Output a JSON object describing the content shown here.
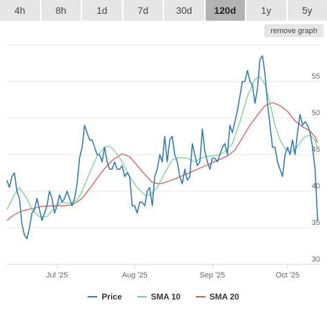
{
  "tabs": [
    {
      "label": "4h",
      "active": false
    },
    {
      "label": "8h",
      "active": false
    },
    {
      "label": "1d",
      "active": false
    },
    {
      "label": "7d",
      "active": false
    },
    {
      "label": "30d",
      "active": false
    },
    {
      "label": "120d",
      "active": true
    },
    {
      "label": "1y",
      "active": false
    },
    {
      "label": "5y",
      "active": false
    }
  ],
  "remove_graph_label": "remove graph",
  "chart_data": {
    "type": "line",
    "title": "",
    "xlabel": "",
    "ylabel": "",
    "ylim": [
      30,
      60
    ],
    "yticks": [
      30,
      35,
      40,
      45,
      50,
      55
    ],
    "xticks": [
      {
        "label": "Jul '25",
        "x": 20
      },
      {
        "label": "Aug '25",
        "x": 51
      },
      {
        "label": "Sep '25",
        "x": 82
      },
      {
        "label": "Oct '25",
        "x": 112
      }
    ],
    "xlim": [
      0,
      125
    ],
    "grid": true,
    "legend_position": "bottom",
    "series": [
      {
        "name": "Price",
        "color": "#2f7ab9",
        "points": [
          [
            0,
            41.5
          ],
          [
            1,
            40.5
          ],
          [
            2,
            42
          ],
          [
            3,
            42.5
          ],
          [
            4,
            40
          ],
          [
            5,
            39
          ],
          [
            6,
            35.5
          ],
          [
            7,
            34
          ],
          [
            8,
            33.5
          ],
          [
            9,
            35
          ],
          [
            10,
            37
          ],
          [
            11,
            37.5
          ],
          [
            12,
            39
          ],
          [
            13,
            37.5
          ],
          [
            14,
            36
          ],
          [
            15,
            37
          ],
          [
            16,
            38
          ],
          [
            17,
            40
          ],
          [
            18,
            39
          ],
          [
            19,
            37
          ],
          [
            20,
            38
          ],
          [
            21,
            39.5
          ],
          [
            22,
            38.5
          ],
          [
            23,
            39
          ],
          [
            24,
            40
          ],
          [
            25,
            39
          ],
          [
            26,
            38
          ],
          [
            27,
            39
          ],
          [
            28,
            41
          ],
          [
            29,
            44.5
          ],
          [
            30,
            46
          ],
          [
            31,
            49
          ],
          [
            32,
            48
          ],
          [
            33,
            47
          ],
          [
            34,
            47
          ],
          [
            35,
            46
          ],
          [
            36,
            45
          ],
          [
            37,
            45
          ],
          [
            38,
            44
          ],
          [
            39,
            46
          ],
          [
            40,
            44
          ],
          [
            41,
            43
          ],
          [
            42,
            43
          ],
          [
            43,
            44
          ],
          [
            44,
            43
          ],
          [
            45,
            43
          ],
          [
            46,
            43.5
          ],
          [
            47,
            42
          ],
          [
            48,
            42.5
          ],
          [
            49,
            42
          ],
          [
            50,
            38
          ],
          [
            51,
            38
          ],
          [
            52,
            37
          ],
          [
            53,
            38.5
          ],
          [
            54,
            38.5
          ],
          [
            55,
            38
          ],
          [
            56,
            40
          ],
          [
            57,
            40.5
          ],
          [
            58,
            38
          ],
          [
            59,
            42
          ],
          [
            60,
            43
          ],
          [
            61,
            45
          ],
          [
            62,
            44
          ],
          [
            63,
            47.5
          ],
          [
            64,
            44
          ],
          [
            65,
            47
          ],
          [
            66,
            47.5
          ],
          [
            67,
            45
          ],
          [
            68,
            44
          ],
          [
            69,
            42
          ],
          [
            70,
            41
          ],
          [
            71,
            43
          ],
          [
            72,
            41.5
          ],
          [
            73,
            42
          ],
          [
            74,
            46.5
          ],
          [
            75,
            45
          ],
          [
            76,
            43.5
          ],
          [
            77,
            44
          ],
          [
            78,
            48.5
          ],
          [
            79,
            45.5
          ],
          [
            80,
            44
          ],
          [
            81,
            43
          ],
          [
            82,
            44.5
          ],
          [
            83,
            44.5
          ],
          [
            84,
            44
          ],
          [
            85,
            45
          ],
          [
            86,
            46
          ],
          [
            87,
            46.5
          ],
          [
            88,
            45
          ],
          [
            89,
            49
          ],
          [
            90,
            48
          ],
          [
            91,
            49.5
          ],
          [
            92,
            51
          ],
          [
            93,
            53
          ],
          [
            94,
            55
          ],
          [
            95,
            55
          ],
          [
            96,
            56.5
          ],
          [
            97,
            55
          ],
          [
            98,
            54.5
          ],
          [
            99,
            52
          ],
          [
            100,
            54
          ],
          [
            101,
            58
          ],
          [
            102,
            58.5
          ],
          [
            103,
            56
          ],
          [
            104,
            52
          ],
          [
            105,
            49
          ],
          [
            106,
            46
          ],
          [
            107,
            46
          ],
          [
            108,
            44
          ],
          [
            109,
            43
          ],
          [
            110,
            42
          ],
          [
            111,
            45
          ],
          [
            112,
            46
          ],
          [
            113,
            45
          ],
          [
            114,
            47
          ],
          [
            115,
            45
          ],
          [
            116,
            48
          ],
          [
            117,
            50.5
          ],
          [
            118,
            49
          ],
          [
            119,
            49.5
          ],
          [
            120,
            49
          ],
          [
            121,
            48
          ],
          [
            122,
            46
          ],
          [
            123,
            43
          ],
          [
            124,
            36
          ]
        ]
      },
      {
        "name": "SMA 10",
        "color": "#6cd68a",
        "points": [
          [
            0,
            37.5
          ],
          [
            3,
            39.5
          ],
          [
            5,
            40.5
          ],
          [
            8,
            39
          ],
          [
            10,
            37.5
          ],
          [
            13,
            36.5
          ],
          [
            16,
            36.5
          ],
          [
            19,
            37.8
          ],
          [
            22,
            38.5
          ],
          [
            25,
            38.3
          ],
          [
            28,
            38.8
          ],
          [
            30,
            40
          ],
          [
            33,
            42.5
          ],
          [
            36,
            44.8
          ],
          [
            39,
            46
          ],
          [
            41,
            46.2
          ],
          [
            43,
            45.5
          ],
          [
            46,
            44
          ],
          [
            49,
            42
          ],
          [
            52,
            40.5
          ],
          [
            55,
            39.5
          ],
          [
            57,
            39.4
          ],
          [
            60,
            40.5
          ],
          [
            63,
            42.5
          ],
          [
            66,
            44.3
          ],
          [
            69,
            44.6
          ],
          [
            72,
            44.5
          ],
          [
            75,
            44
          ],
          [
            78,
            44.6
          ],
          [
            81,
            44.8
          ],
          [
            84,
            44.9
          ],
          [
            87,
            45.4
          ],
          [
            90,
            46.5
          ],
          [
            93,
            49.5
          ],
          [
            96,
            53
          ],
          [
            99,
            55.3
          ],
          [
            101,
            55.6
          ],
          [
            103,
            54.6
          ],
          [
            105,
            52
          ],
          [
            107,
            49
          ],
          [
            109,
            47
          ],
          [
            111,
            45.8
          ],
          [
            113,
            45.3
          ],
          [
            115,
            45.7
          ],
          [
            117,
            46.6
          ],
          [
            119,
            47.5
          ],
          [
            121,
            47.6
          ],
          [
            123,
            47
          ],
          [
            124,
            45.7
          ]
        ]
      },
      {
        "name": "SMA 20",
        "color": "#e0574f",
        "points": [
          [
            0,
            36
          ],
          [
            3,
            36.8
          ],
          [
            6,
            37.3
          ],
          [
            10,
            37.6
          ],
          [
            14,
            37.9
          ],
          [
            18,
            38
          ],
          [
            22,
            38
          ],
          [
            26,
            38.1
          ],
          [
            30,
            39
          ],
          [
            34,
            40.8
          ],
          [
            38,
            42.7
          ],
          [
            42,
            44.2
          ],
          [
            46,
            45.1
          ],
          [
            49,
            44.7
          ],
          [
            52,
            43.5
          ],
          [
            55,
            42.3
          ],
          [
            58,
            41.2
          ],
          [
            61,
            41
          ],
          [
            64,
            41.3
          ],
          [
            68,
            41.8
          ],
          [
            72,
            42.4
          ],
          [
            76,
            43
          ],
          [
            80,
            43.6
          ],
          [
            84,
            44.2
          ],
          [
            88,
            44.8
          ],
          [
            91,
            45.6
          ],
          [
            94,
            47.3
          ],
          [
            97,
            49
          ],
          [
            100,
            50.4
          ],
          [
            103,
            51.7
          ],
          [
            106,
            52.1
          ],
          [
            109,
            51.7
          ],
          [
            112,
            50.9
          ],
          [
            115,
            49.6
          ],
          [
            118,
            48.8
          ],
          [
            121,
            48.2
          ],
          [
            123,
            47.4
          ],
          [
            124,
            46.6
          ]
        ]
      }
    ]
  }
}
